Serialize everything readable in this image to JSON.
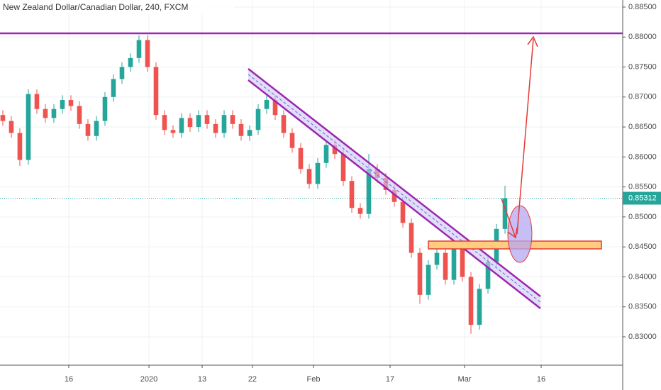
{
  "chart_data": {
    "type": "candlestick",
    "title": "New Zealand Dollar/Canadian Dollar, 240, FXCM",
    "up_color": "#26a69a",
    "down_color": "#ef5350",
    "open": [
      0.867,
      0.866,
      0.864,
      0.8595,
      0.8705,
      0.868,
      0.8665,
      0.868,
      0.8695,
      0.8685,
      0.8655,
      0.8635,
      0.866,
      0.87,
      0.873,
      0.875,
      0.8765,
      0.8795,
      0.875,
      0.867,
      0.8645,
      0.864,
      0.8665,
      0.865,
      0.867,
      0.8655,
      0.864,
      0.867,
      0.8655,
      0.8635,
      0.8645,
      0.868,
      0.8695,
      0.867,
      0.864,
      0.8615,
      0.858,
      0.8555,
      0.859,
      0.862,
      0.8605,
      0.856,
      0.8515,
      0.8505,
      0.858,
      0.8565,
      0.8545,
      0.8525,
      0.849,
      0.844,
      0.837,
      0.842,
      0.844,
      0.8395,
      0.845,
      0.84,
      0.832,
      0.838,
      0.8425,
      0.848
    ],
    "high": [
      0.8678,
      0.8668,
      0.8648,
      0.8713,
      0.8713,
      0.8688,
      0.8688,
      0.8703,
      0.8703,
      0.8693,
      0.8663,
      0.8668,
      0.8708,
      0.8738,
      0.8758,
      0.8773,
      0.8803,
      0.8803,
      0.8758,
      0.8678,
      0.8653,
      0.8673,
      0.8673,
      0.8678,
      0.8678,
      0.8663,
      0.8678,
      0.8678,
      0.8663,
      0.8653,
      0.8688,
      0.8703,
      0.8703,
      0.8678,
      0.8648,
      0.8623,
      0.8588,
      0.8598,
      0.8628,
      0.8628,
      0.8613,
      0.8568,
      0.8523,
      0.8605,
      0.8588,
      0.8573,
      0.8553,
      0.8533,
      0.8498,
      0.8448,
      0.8428,
      0.8455,
      0.8448,
      0.8458,
      0.8458,
      0.8408,
      0.8388,
      0.8433,
      0.8488,
      0.8552
    ],
    "low": [
      0.8652,
      0.8632,
      0.8585,
      0.8587,
      0.8672,
      0.8657,
      0.8657,
      0.8672,
      0.8677,
      0.8647,
      0.8627,
      0.8627,
      0.8652,
      0.8692,
      0.8722,
      0.8742,
      0.8757,
      0.8742,
      0.8662,
      0.8637,
      0.8632,
      0.8632,
      0.8642,
      0.8642,
      0.8647,
      0.8632,
      0.8632,
      0.8647,
      0.8627,
      0.8627,
      0.8637,
      0.8672,
      0.8662,
      0.8632,
      0.8607,
      0.8572,
      0.8547,
      0.8547,
      0.8582,
      0.8597,
      0.8552,
      0.8507,
      0.8497,
      0.8497,
      0.8557,
      0.8537,
      0.8517,
      0.8482,
      0.8432,
      0.8355,
      0.8362,
      0.8412,
      0.8387,
      0.8387,
      0.8392,
      0.8305,
      0.8312,
      0.8372,
      0.8417,
      0.8472
    ],
    "close": [
      0.866,
      0.864,
      0.8595,
      0.8705,
      0.868,
      0.8665,
      0.868,
      0.8695,
      0.8685,
      0.8655,
      0.8635,
      0.866,
      0.87,
      0.873,
      0.875,
      0.8765,
      0.8795,
      0.875,
      0.867,
      0.8645,
      0.864,
      0.8665,
      0.865,
      0.867,
      0.8655,
      0.864,
      0.867,
      0.8655,
      0.8635,
      0.8645,
      0.868,
      0.8695,
      0.867,
      0.864,
      0.8615,
      0.858,
      0.8555,
      0.859,
      0.862,
      0.8605,
      0.856,
      0.8515,
      0.8505,
      0.858,
      0.8565,
      0.8545,
      0.8525,
      0.849,
      0.844,
      0.837,
      0.842,
      0.844,
      0.8395,
      0.845,
      0.84,
      0.832,
      0.838,
      0.8425,
      0.848,
      0.8531
    ],
    "xlim": [
      -0.33,
      72.83
    ],
    "xticks": [
      {
        "value": 7.75,
        "label": "16"
      },
      {
        "value": 17.17,
        "label": "2020"
      },
      {
        "value": 23.42,
        "label": "13"
      },
      {
        "value": 29.33,
        "label": "22"
      },
      {
        "value": 36.5,
        "label": "Feb"
      },
      {
        "value": 45.5,
        "label": "17"
      },
      {
        "value": 54.25,
        "label": "Mar"
      },
      {
        "value": 63.25,
        "label": "16"
      }
    ],
    "ylim": [
      0.82527,
      0.88618
    ],
    "yticks": [
      {
        "value": 0.885,
        "label": "0.88500"
      },
      {
        "value": 0.88,
        "label": "0.88000"
      },
      {
        "value": 0.875,
        "label": "0.87500"
      },
      {
        "value": 0.87,
        "label": "0.87000"
      },
      {
        "value": 0.865,
        "label": "0.86500"
      },
      {
        "value": 0.86,
        "label": "0.86000"
      },
      {
        "value": 0.855,
        "label": "0.85500"
      },
      {
        "value": 0.85,
        "label": "0.85000"
      },
      {
        "value": 0.845,
        "label": "0.84500"
      },
      {
        "value": 0.84,
        "label": "0.84000"
      },
      {
        "value": 0.835,
        "label": "0.83500"
      },
      {
        "value": 0.83,
        "label": "0.83000"
      }
    ],
    "grid": true,
    "last_price": {
      "value": 0.85312,
      "label": "0.85312"
    }
  }
}
